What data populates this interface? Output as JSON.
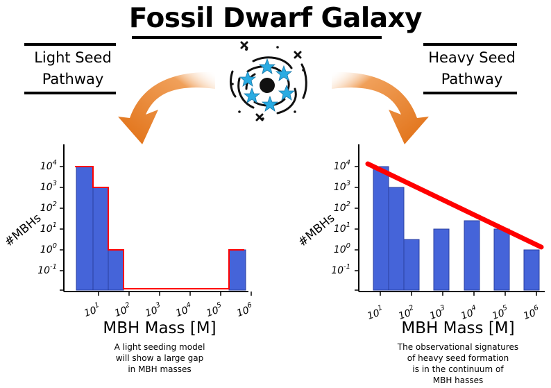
{
  "title": "Fossil Dwarf Galaxy",
  "left": {
    "heading_line1": "Light Seed",
    "heading_line2": "Pathway",
    "caption_lines": [
      "A light seeding model",
      "will show a large gap",
      "in MBH masses"
    ]
  },
  "right": {
    "heading_line1": "Heavy Seed",
    "heading_line2": "Pathway",
    "caption_lines": [
      "The observational signatures",
      "of heavy seed formation",
      "is in the continuum of",
      "MBH hasses"
    ]
  },
  "colors": {
    "bar_fill": "#4564d9",
    "bar_edge": "#2b3f9e",
    "outline_red": "#ff0000",
    "arrow_orange": "#e67a22",
    "star_blue": "#29abe2"
  },
  "galaxy_icon": "galaxy-icon",
  "chart_data": [
    {
      "type": "bar",
      "xlabel": "MBH Mass [M]",
      "ylabel": "#MBHs",
      "x_ticks": [
        "10^1",
        "10^2",
        "10^3",
        "10^4",
        "10^5",
        "10^6"
      ],
      "y_ticks": [
        "10^-1",
        "10^0",
        "10^1",
        "10^2",
        "10^3",
        "10^4"
      ],
      "yscale": "log",
      "log_bins": [
        1,
        1.5,
        2
      ],
      "bars": [
        {
          "x_center": 1.2,
          "y": 4
        },
        {
          "x_center": 1.6,
          "y": 3
        },
        {
          "x_center": 1.9,
          "y": 0
        }
      ],
      "right_bars": [
        {
          "x_center": 6.0,
          "y": 0
        }
      ],
      "outline": "step",
      "gap_range": [
        2.1,
        5.8
      ]
    },
    {
      "type": "bar",
      "xlabel": "MBH Mass [M]",
      "ylabel": "#MBHs",
      "x_ticks": [
        "10^1",
        "10^2",
        "10^3",
        "10^4",
        "10^5",
        "10^6"
      ],
      "y_ticks": [
        "10^-1",
        "10^0",
        "10^1",
        "10^2",
        "10^3",
        "10^4"
      ],
      "yscale": "log",
      "bars": [
        {
          "x": 1.0,
          "y": 4.0
        },
        {
          "x": 1.35,
          "y": 3.0
        },
        {
          "x": 1.7,
          "y": 0.5
        },
        {
          "x": 2.8,
          "y": 1.0
        },
        {
          "x": 3.8,
          "y": 1.4
        },
        {
          "x": 4.8,
          "y": 1.0
        },
        {
          "x": 5.8,
          "y": 0.0
        }
      ],
      "trend_line": {
        "from": [
          0.9,
          4.0
        ],
        "to": [
          6.1,
          0.0
        ]
      }
    }
  ]
}
